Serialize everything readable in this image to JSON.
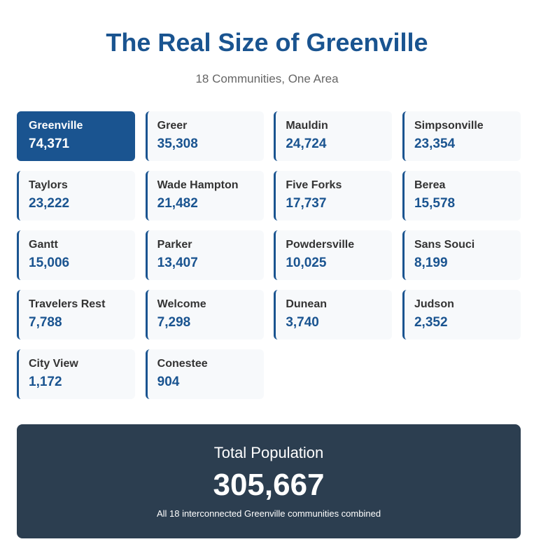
{
  "header": {
    "title": "The Real Size of Greenville",
    "subtitle": "18 Communities, One Area"
  },
  "communities": [
    {
      "name": "Greenville",
      "population": "74,371",
      "highlighted": true
    },
    {
      "name": "Greer",
      "population": "35,308"
    },
    {
      "name": "Mauldin",
      "population": "24,724"
    },
    {
      "name": "Simpsonville",
      "population": "23,354"
    },
    {
      "name": "Taylors",
      "population": "23,222"
    },
    {
      "name": "Wade Hampton",
      "population": "21,482"
    },
    {
      "name": "Five Forks",
      "population": "17,737"
    },
    {
      "name": "Berea",
      "population": "15,578"
    },
    {
      "name": "Gantt",
      "population": "15,006"
    },
    {
      "name": "Parker",
      "population": "13,407"
    },
    {
      "name": "Powdersville",
      "population": "10,025"
    },
    {
      "name": "Sans Souci",
      "population": "8,199"
    },
    {
      "name": "Travelers Rest",
      "population": "7,788"
    },
    {
      "name": "Welcome",
      "population": "7,298"
    },
    {
      "name": "Dunean",
      "population": "3,740"
    },
    {
      "name": "Judson",
      "population": "2,352"
    },
    {
      "name": "City View",
      "population": "1,172"
    },
    {
      "name": "Conestee",
      "population": "904"
    }
  ],
  "total": {
    "label": "Total Population",
    "value": "305,667",
    "note": "All 18 interconnected Greenville communities combined"
  },
  "colors": {
    "accent": "#1a5490",
    "card_bg": "#f7f9fb",
    "total_bg": "#2c3e50"
  }
}
